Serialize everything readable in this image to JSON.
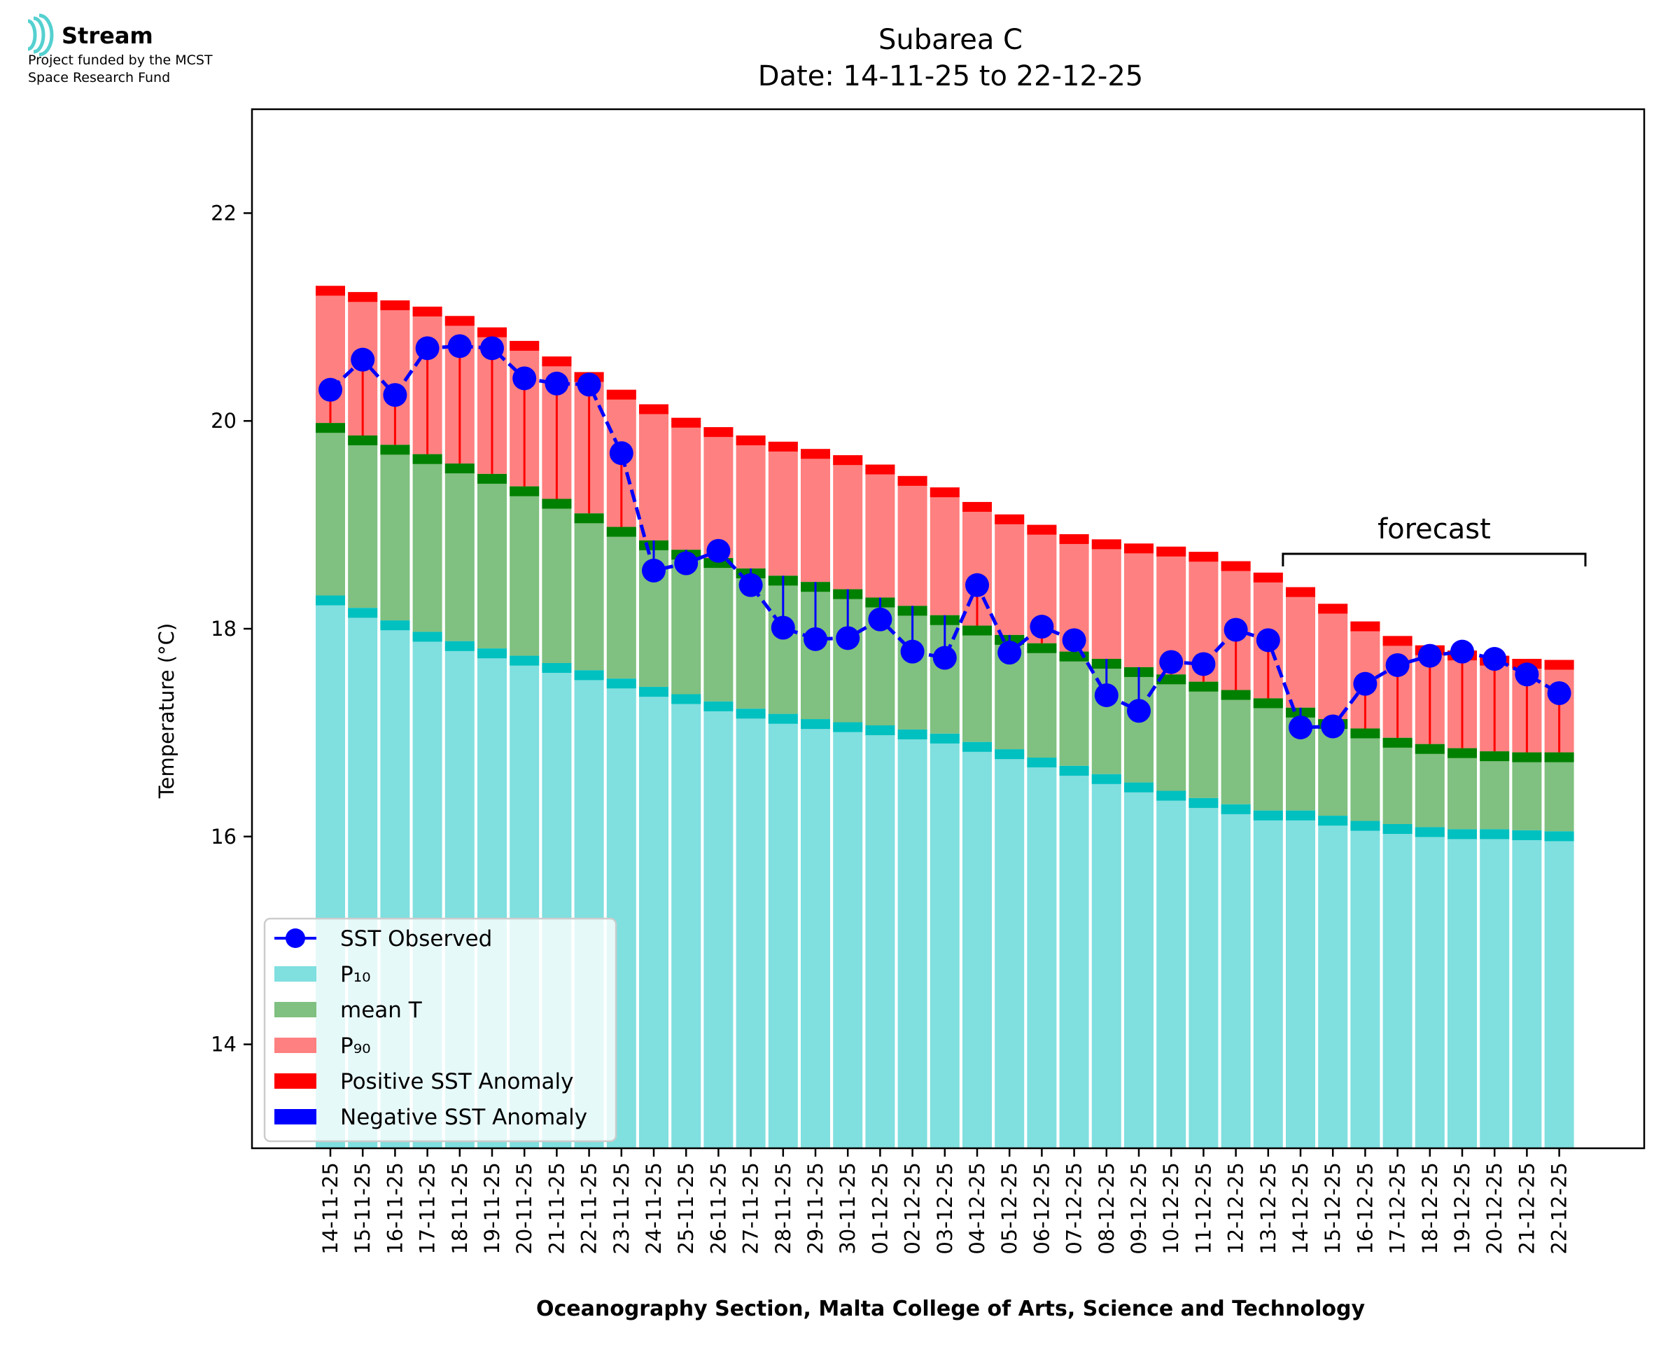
{
  "logo": {
    "name": "Stream",
    "line1": "Project funded by the MCST",
    "line2": "Space Research Fund"
  },
  "chart_data": {
    "type": "bar",
    "title": "Subarea C",
    "subtitle": "Date: 14-11-25 to 22-12-25",
    "xlabel": "Oceanography Section, Malta College of Arts, Science and Technology",
    "ylabel": "Temperature (°C)",
    "ylim": [
      13.0,
      23.0
    ],
    "yticks": [
      14,
      16,
      18,
      20,
      22
    ],
    "grid": false,
    "legend_position": "lower-left",
    "annotation": "forecast",
    "forecast_start": "14-12-25",
    "colors": {
      "p10": "#80dfdf",
      "p10_edge": "#00c0c0",
      "mean": "#80c080",
      "mean_edge": "#008000",
      "p90": "#ff8080",
      "p90_edge": "#ff0000",
      "positive_anomaly": "#ff0000",
      "negative_anomaly": "#0000ff",
      "observed": "#0000ff"
    },
    "categories": [
      "14-11-25",
      "15-11-25",
      "16-11-25",
      "17-11-25",
      "18-11-25",
      "19-11-25",
      "20-11-25",
      "21-11-25",
      "22-11-25",
      "23-11-25",
      "24-11-25",
      "25-11-25",
      "26-11-25",
      "27-11-25",
      "28-11-25",
      "29-11-25",
      "30-11-25",
      "01-12-25",
      "02-12-25",
      "03-12-25",
      "04-12-25",
      "05-12-25",
      "06-12-25",
      "07-12-25",
      "08-12-25",
      "09-12-25",
      "10-12-25",
      "11-12-25",
      "12-12-25",
      "13-12-25",
      "14-12-25",
      "15-12-25",
      "16-12-25",
      "17-12-25",
      "18-12-25",
      "19-12-25",
      "20-12-25",
      "21-12-25",
      "22-12-25"
    ],
    "series": [
      {
        "name": "P₁₀",
        "values": [
          18.32,
          18.2,
          18.08,
          17.97,
          17.88,
          17.81,
          17.74,
          17.67,
          17.6,
          17.52,
          17.44,
          17.37,
          17.3,
          17.23,
          17.18,
          17.13,
          17.1,
          17.07,
          17.03,
          16.99,
          16.91,
          16.84,
          16.76,
          16.68,
          16.6,
          16.52,
          16.44,
          16.37,
          16.31,
          16.25,
          16.25,
          16.2,
          16.15,
          16.12,
          16.09,
          16.07,
          16.07,
          16.06,
          16.05
        ]
      },
      {
        "name": "mean T",
        "values": [
          19.98,
          19.86,
          19.77,
          19.68,
          19.59,
          19.49,
          19.37,
          19.25,
          19.11,
          18.98,
          18.85,
          18.76,
          18.68,
          18.58,
          18.51,
          18.45,
          18.38,
          18.3,
          18.22,
          18.13,
          18.03,
          17.94,
          17.86,
          17.78,
          17.71,
          17.63,
          17.56,
          17.49,
          17.41,
          17.33,
          17.24,
          17.13,
          17.04,
          16.95,
          16.89,
          16.85,
          16.82,
          16.81,
          16.81
        ]
      },
      {
        "name": "P₉₀",
        "values": [
          21.3,
          21.24,
          21.16,
          21.1,
          21.01,
          20.9,
          20.77,
          20.62,
          20.47,
          20.3,
          20.16,
          20.03,
          19.94,
          19.86,
          19.8,
          19.73,
          19.67,
          19.58,
          19.47,
          19.36,
          19.22,
          19.1,
          19.0,
          18.91,
          18.86,
          18.82,
          18.79,
          18.74,
          18.65,
          18.54,
          18.4,
          18.24,
          18.07,
          17.93,
          17.84,
          17.79,
          17.74,
          17.71,
          17.7
        ]
      },
      {
        "name": "SST Observed",
        "values": [
          20.3,
          20.59,
          20.25,
          20.7,
          20.72,
          20.7,
          20.41,
          20.36,
          20.35,
          19.69,
          18.56,
          18.63,
          18.75,
          18.42,
          18.01,
          17.9,
          17.91,
          18.09,
          17.78,
          17.72,
          18.42,
          17.77,
          18.02,
          17.89,
          17.36,
          17.21,
          17.68,
          17.66,
          17.99,
          17.89,
          17.05,
          17.06,
          17.47,
          17.65,
          17.74,
          17.78,
          17.71,
          17.56,
          17.38
        ]
      }
    ],
    "legend": [
      "SST Observed",
      "P₁₀",
      "mean T",
      "P₉₀",
      "Positive SST Anomaly",
      "Negative SST Anomaly"
    ]
  }
}
